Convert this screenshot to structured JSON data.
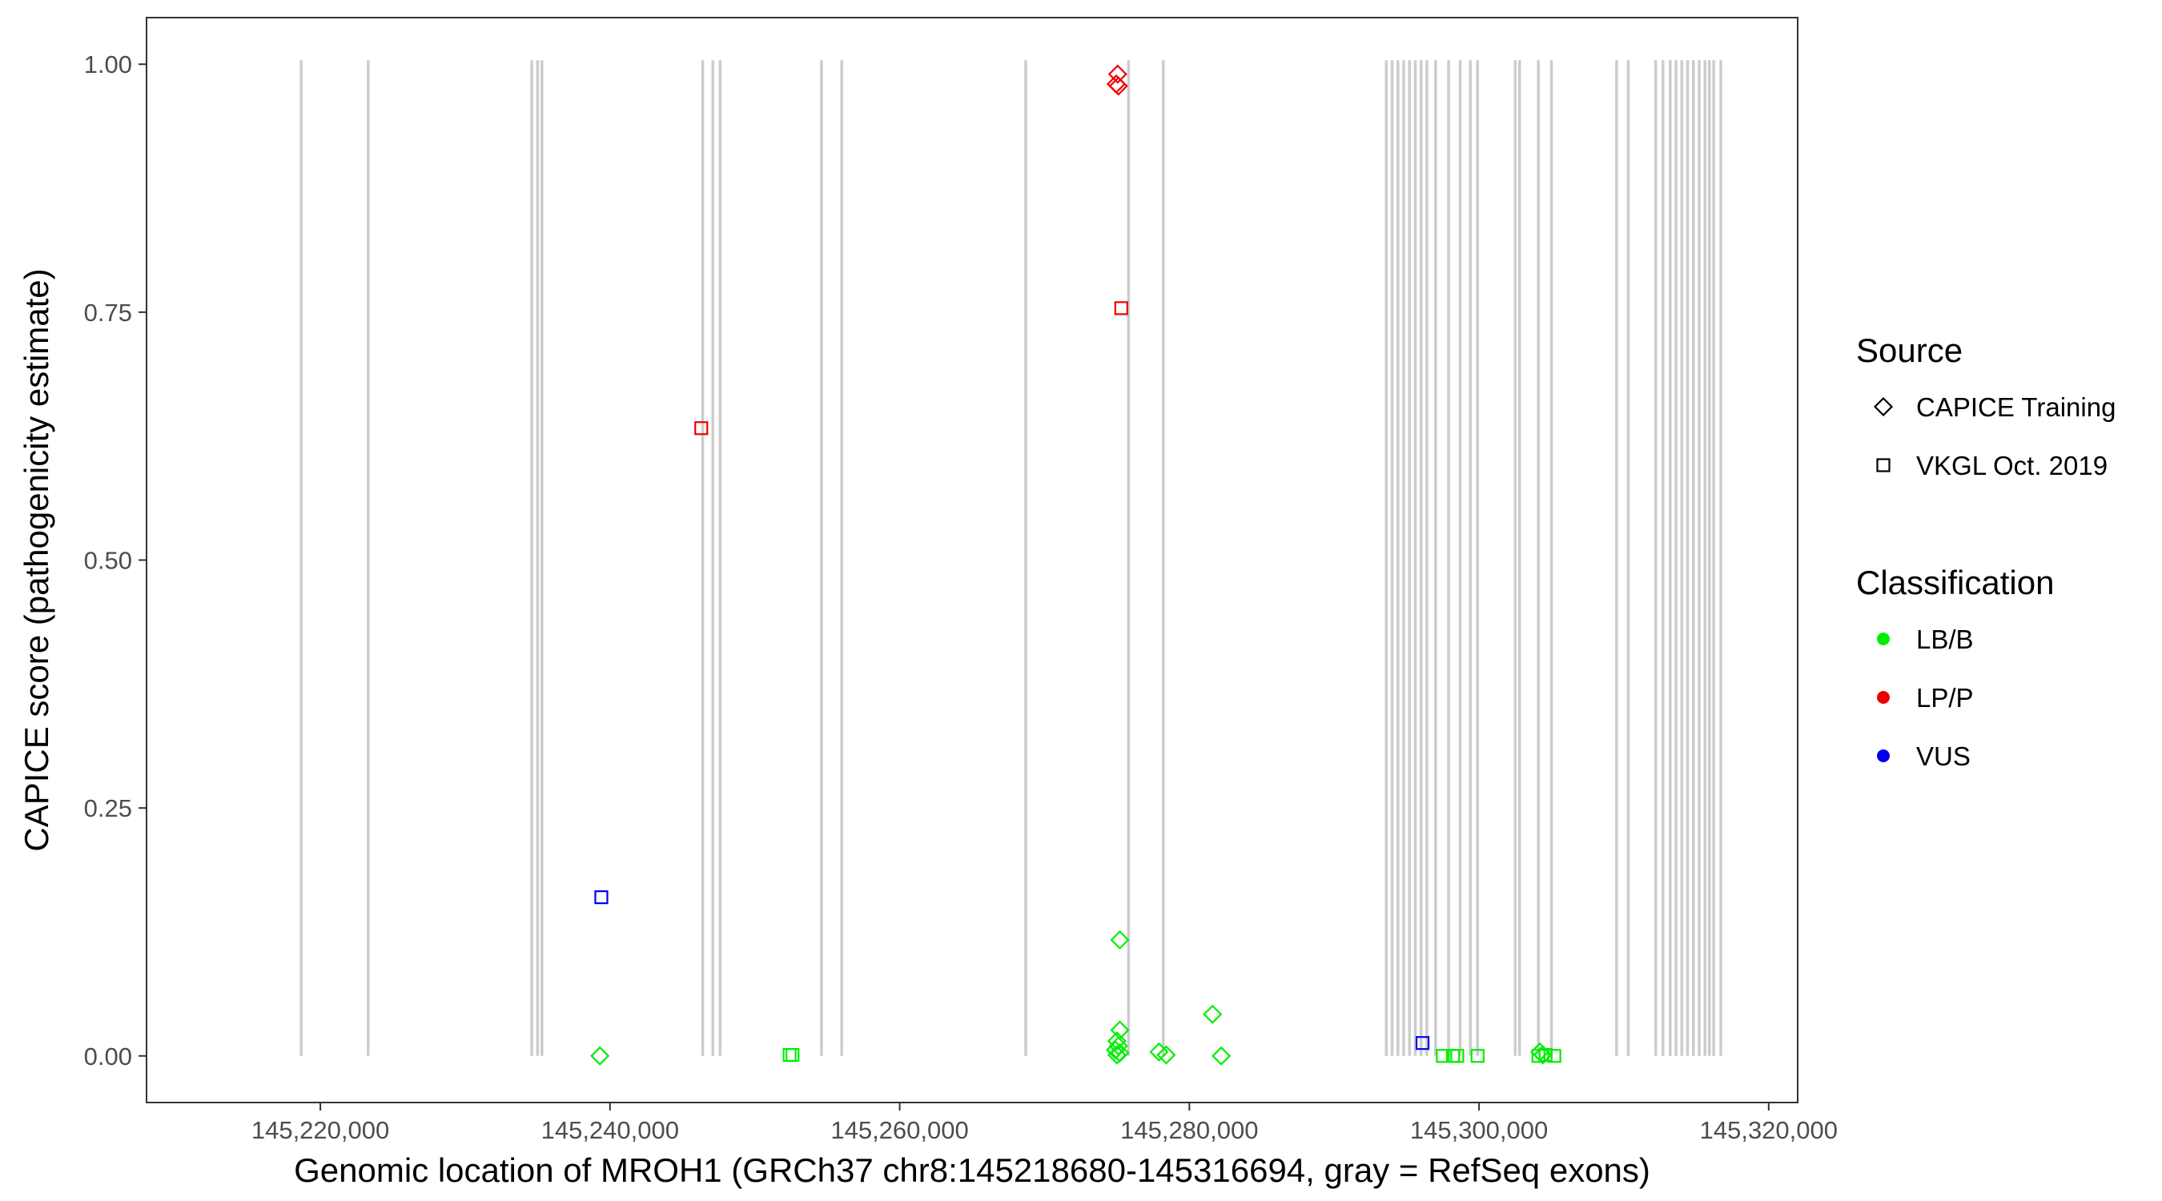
{
  "chart_data": {
    "type": "scatter",
    "xlabel": "Genomic location of MROH1 (GRCh37 chr8:145218680-145316694, gray = RefSeq exons)",
    "ylabel": "CAPICE score (pathogenicity estimate)",
    "xlim": [
      145208000,
      145322000
    ],
    "ylim": [
      -0.047,
      1.047
    ],
    "x_ticks": [
      145220000,
      145240000,
      145260000,
      145280000,
      145300000,
      145320000
    ],
    "x_tick_labels": [
      "145,220,000",
      "145,240,000",
      "145,260,000",
      "145,280,000",
      "145,300,000",
      "145,320,000"
    ],
    "y_ticks": [
      0,
      0.25,
      0.5,
      0.75,
      1
    ],
    "y_tick_labels": [
      "0.00",
      "0.25",
      "0.50",
      "0.75",
      "1.00"
    ],
    "grid": false,
    "exon_color": "#cccccc",
    "exons": [
      145218680,
      145223300,
      145234600,
      145235000,
      145235300,
      145246400,
      145247100,
      145247600,
      145254600,
      145256000,
      145268700,
      145275800,
      145278200,
      145293600,
      145294000,
      145294400,
      145294800,
      145295200,
      145295600,
      145296000,
      145296400,
      145297000,
      145297900,
      145298700,
      145299400,
      145299900,
      145302500,
      145302800,
      145304100,
      145305000,
      145309500,
      145310300,
      145312200,
      145312700,
      145313200,
      145313600,
      145314000,
      145314400,
      145314800,
      145315200,
      145315600,
      145315900,
      145316200,
      145316694
    ],
    "legend": {
      "position": "right",
      "source_title": "Source",
      "source_entries": [
        {
          "label": "CAPICE Training",
          "shape": "diamond"
        },
        {
          "label": "VKGL Oct. 2019",
          "shape": "square"
        }
      ],
      "classification_title": "Classification",
      "classification_entries": [
        {
          "label": "LB/B",
          "color": "#00ee00"
        },
        {
          "label": "LP/P",
          "color": "#ee0000"
        },
        {
          "label": "VUS",
          "color": "#0000ee"
        }
      ]
    },
    "points": [
      {
        "x": 145275050,
        "y": 0.99,
        "source": "CAPICE Training",
        "class": "LP/P"
      },
      {
        "x": 145274950,
        "y": 0.98,
        "source": "CAPICE Training",
        "class": "LP/P"
      },
      {
        "x": 145275100,
        "y": 0.978,
        "source": "CAPICE Training",
        "class": "LP/P"
      },
      {
        "x": 145275300,
        "y": 0.754,
        "source": "VKGL Oct. 2019",
        "class": "LP/P"
      },
      {
        "x": 145246300,
        "y": 0.633,
        "source": "VKGL Oct. 2019",
        "class": "LP/P"
      },
      {
        "x": 145239400,
        "y": 0.16,
        "source": "VKGL Oct. 2019",
        "class": "VUS"
      },
      {
        "x": 145296100,
        "y": 0.013,
        "source": "VKGL Oct. 2019",
        "class": "VUS"
      },
      {
        "x": 145239300,
        "y": 0.0,
        "source": "CAPICE Training",
        "class": "LB/B"
      },
      {
        "x": 145252400,
        "y": 0.001,
        "source": "VKGL Oct. 2019",
        "class": "LB/B"
      },
      {
        "x": 145252600,
        "y": 0.001,
        "source": "VKGL Oct. 2019",
        "class": "LB/B"
      },
      {
        "x": 145275200,
        "y": 0.117,
        "source": "CAPICE Training",
        "class": "LB/B"
      },
      {
        "x": 145275200,
        "y": 0.026,
        "source": "CAPICE Training",
        "class": "LB/B"
      },
      {
        "x": 145275000,
        "y": 0.015,
        "source": "CAPICE Training",
        "class": "LB/B"
      },
      {
        "x": 145275100,
        "y": 0.01,
        "source": "CAPICE Training",
        "class": "LB/B"
      },
      {
        "x": 145274900,
        "y": 0.006,
        "source": "CAPICE Training",
        "class": "LB/B"
      },
      {
        "x": 145275200,
        "y": 0.003,
        "source": "CAPICE Training",
        "class": "LB/B"
      },
      {
        "x": 145275000,
        "y": 0.001,
        "source": "CAPICE Training",
        "class": "LB/B"
      },
      {
        "x": 145277900,
        "y": 0.004,
        "source": "CAPICE Training",
        "class": "LB/B"
      },
      {
        "x": 145278400,
        "y": 0.001,
        "source": "CAPICE Training",
        "class": "LB/B"
      },
      {
        "x": 145281600,
        "y": 0.042,
        "source": "CAPICE Training",
        "class": "LB/B"
      },
      {
        "x": 145282200,
        "y": 0.0,
        "source": "CAPICE Training",
        "class": "LB/B"
      },
      {
        "x": 145297500,
        "y": 0.0,
        "source": "VKGL Oct. 2019",
        "class": "LB/B"
      },
      {
        "x": 145298200,
        "y": 0.0,
        "source": "VKGL Oct. 2019",
        "class": "LB/B"
      },
      {
        "x": 145298500,
        "y": 0.0,
        "source": "VKGL Oct. 2019",
        "class": "LB/B"
      },
      {
        "x": 145299900,
        "y": 0.0,
        "source": "VKGL Oct. 2019",
        "class": "LB/B"
      },
      {
        "x": 145304200,
        "y": 0.004,
        "source": "CAPICE Training",
        "class": "LB/B"
      },
      {
        "x": 145304400,
        "y": 0.001,
        "source": "CAPICE Training",
        "class": "LB/B"
      },
      {
        "x": 145304100,
        "y": 0.0,
        "source": "VKGL Oct. 2019",
        "class": "LB/B"
      },
      {
        "x": 145304600,
        "y": 0.001,
        "source": "VKGL Oct. 2019",
        "class": "LB/B"
      },
      {
        "x": 145305200,
        "y": 0.0,
        "source": "VKGL Oct. 2019",
        "class": "LB/B"
      }
    ]
  }
}
